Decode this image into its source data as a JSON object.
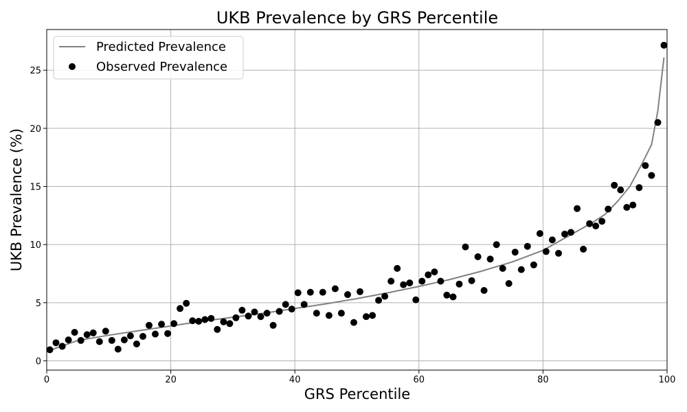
{
  "chart_data": {
    "type": "scatter",
    "title": "UKB Prevalence by GRS Percentile",
    "xlabel": "GRS Percentile",
    "ylabel": "UKB Prevalence (%)",
    "xlim": [
      0,
      100
    ],
    "ylim": [
      -0.8,
      28.5
    ],
    "xticks": [
      0,
      20,
      40,
      60,
      80,
      100
    ],
    "yticks": [
      0,
      5,
      10,
      15,
      20,
      25
    ],
    "grid": true,
    "legend_position": "top-left",
    "legend": [
      "Predicted Prevalence",
      "Observed Prevalence"
    ],
    "colors": {
      "predicted": "#808080",
      "observed": "#000000"
    },
    "series": [
      {
        "name": "Predicted Prevalence",
        "kind": "line",
        "x": [
          0.5,
          5,
          10,
          15,
          20,
          25,
          30,
          35,
          40,
          45,
          50,
          55,
          60,
          65,
          70,
          75,
          80,
          85,
          88,
          90,
          92,
          94,
          96,
          97.5,
          98.5,
          99.5
        ],
        "y": [
          0.9,
          1.75,
          2.2,
          2.6,
          3.0,
          3.4,
          3.75,
          4.1,
          4.5,
          4.9,
          5.35,
          5.85,
          6.4,
          7.0,
          7.7,
          8.5,
          9.5,
          11.0,
          11.9,
          12.6,
          13.7,
          15.0,
          17.0,
          18.6,
          21.5,
          26.1
        ]
      },
      {
        "name": "Observed Prevalence",
        "kind": "scatter",
        "x": [
          0.5,
          1.5,
          2.5,
          3.5,
          4.5,
          5.5,
          6.5,
          7.5,
          8.5,
          9.5,
          10.5,
          11.5,
          12.5,
          13.5,
          14.5,
          15.5,
          16.5,
          17.5,
          18.5,
          19.5,
          20.5,
          21.5,
          22.5,
          23.5,
          24.5,
          25.5,
          26.5,
          27.5,
          28.5,
          29.5,
          30.5,
          31.5,
          32.5,
          33.5,
          34.5,
          35.5,
          36.5,
          37.5,
          38.5,
          39.5,
          40.5,
          41.5,
          42.5,
          43.5,
          44.5,
          45.5,
          46.5,
          47.5,
          48.5,
          49.5,
          50.5,
          51.5,
          52.5,
          53.5,
          54.5,
          55.5,
          56.5,
          57.5,
          58.5,
          59.5,
          60.5,
          61.5,
          62.5,
          63.5,
          64.5,
          65.5,
          66.5,
          67.5,
          68.5,
          69.5,
          70.5,
          71.5,
          72.5,
          73.5,
          74.5,
          75.5,
          76.5,
          77.5,
          78.5,
          79.5,
          80.5,
          81.5,
          82.5,
          83.5,
          84.5,
          85.5,
          86.5,
          87.5,
          88.5,
          89.5,
          90.5,
          91.5,
          92.5,
          93.5,
          94.5,
          95.5,
          96.5,
          97.5,
          98.5,
          99.5
        ],
        "y": [
          0.95,
          1.55,
          1.25,
          1.8,
          2.45,
          1.75,
          2.25,
          2.4,
          1.65,
          2.55,
          1.75,
          1.0,
          1.8,
          2.15,
          1.45,
          2.1,
          3.05,
          2.3,
          3.15,
          2.35,
          3.2,
          4.5,
          4.95,
          3.45,
          3.4,
          3.55,
          3.65,
          2.7,
          3.35,
          3.2,
          3.7,
          4.35,
          3.85,
          4.2,
          3.8,
          4.1,
          3.05,
          4.25,
          4.85,
          4.45,
          5.85,
          4.85,
          5.9,
          4.1,
          5.9,
          3.9,
          6.2,
          4.1,
          5.7,
          3.3,
          5.95,
          3.8,
          3.9,
          5.2,
          5.55,
          6.85,
          7.95,
          6.55,
          6.7,
          5.25,
          6.85,
          7.4,
          7.65,
          6.85,
          5.65,
          5.5,
          6.6,
          9.8,
          6.9,
          8.95,
          6.05,
          8.75,
          10.0,
          7.95,
          6.65,
          9.35,
          7.85,
          9.85,
          8.25,
          10.95,
          9.4,
          10.4,
          9.25,
          10.9,
          11.05,
          13.1,
          9.6,
          11.8,
          11.6,
          12.0,
          13.05,
          15.1,
          14.7,
          13.2,
          13.4,
          14.9,
          16.8,
          15.95,
          20.5,
          27.15
        ]
      }
    ]
  }
}
